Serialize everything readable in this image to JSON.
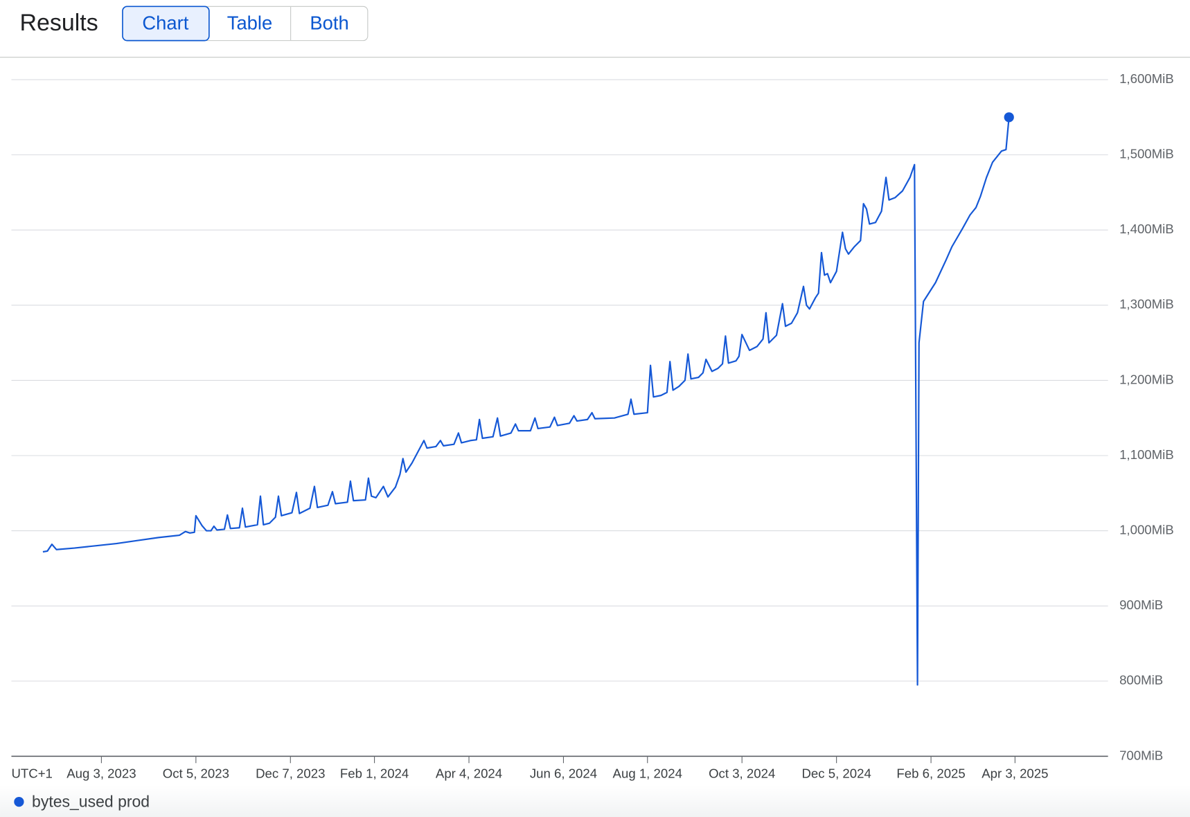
{
  "header": {
    "title": "Results",
    "tabs": [
      "Chart",
      "Table",
      "Both"
    ]
  },
  "chart_data": {
    "type": "line",
    "timezone_label": "UTC+1",
    "x": [
      "2023-06-25",
      "2023-06-28",
      "2023-07-01",
      "2023-07-04",
      "2023-07-16",
      "2023-07-30",
      "2023-08-13",
      "2023-08-27",
      "2023-09-10",
      "2023-09-24",
      "2023-09-28",
      "2023-10-01",
      "2023-10-04",
      "2023-10-05",
      "2023-10-09",
      "2023-10-12",
      "2023-10-15",
      "2023-10-17",
      "2023-10-19",
      "2023-10-24",
      "2023-10-26",
      "2023-10-28",
      "2023-11-03",
      "2023-11-05",
      "2023-11-07",
      "2023-11-15",
      "2023-11-17",
      "2023-11-19",
      "2023-11-23",
      "2023-11-27",
      "2023-11-29",
      "2023-12-01",
      "2023-12-08",
      "2023-12-11",
      "2023-12-13",
      "2023-12-20",
      "2023-12-23",
      "2023-12-25",
      "2024-01-01",
      "2024-01-04",
      "2024-01-06",
      "2024-01-14",
      "2024-01-16",
      "2024-01-18",
      "2024-01-26",
      "2024-01-28",
      "2024-01-30",
      "2024-02-02",
      "2024-02-07",
      "2024-02-10",
      "2024-02-15",
      "2024-02-18",
      "2024-02-20",
      "2024-02-22",
      "2024-02-26",
      "2024-03-05",
      "2024-03-07",
      "2024-03-13",
      "2024-03-16",
      "2024-03-18",
      "2024-03-25",
      "2024-03-28",
      "2024-03-30",
      "2024-04-05",
      "2024-04-09",
      "2024-04-11",
      "2024-04-13",
      "2024-04-20",
      "2024-04-23",
      "2024-04-25",
      "2024-05-02",
      "2024-05-05",
      "2024-05-07",
      "2024-05-15",
      "2024-05-18",
      "2024-05-20",
      "2024-05-28",
      "2024-05-31",
      "2024-06-02",
      "2024-06-10",
      "2024-06-13",
      "2024-06-15",
      "2024-06-22",
      "2024-06-25",
      "2024-06-27",
      "2024-07-10",
      "2024-07-19",
      "2024-07-21",
      "2024-07-23",
      "2024-08-01",
      "2024-08-03",
      "2024-08-05",
      "2024-08-10",
      "2024-08-14",
      "2024-08-16",
      "2024-08-18",
      "2024-08-22",
      "2024-08-26",
      "2024-08-28",
      "2024-08-30",
      "2024-09-04",
      "2024-09-07",
      "2024-09-09",
      "2024-09-13",
      "2024-09-17",
      "2024-09-20",
      "2024-09-22",
      "2024-09-24",
      "2024-09-29",
      "2024-10-01",
      "2024-10-03",
      "2024-10-08",
      "2024-10-13",
      "2024-10-17",
      "2024-10-19",
      "2024-10-21",
      "2024-10-26",
      "2024-10-30",
      "2024-11-01",
      "2024-11-05",
      "2024-11-09",
      "2024-11-13",
      "2024-11-15",
      "2024-11-17",
      "2024-11-21",
      "2024-11-23",
      "2024-11-25",
      "2024-11-27",
      "2024-11-29",
      "2024-12-01",
      "2024-12-05",
      "2024-12-09",
      "2024-12-11",
      "2024-12-13",
      "2024-12-17",
      "2024-12-21",
      "2024-12-23",
      "2024-12-25",
      "2024-12-27",
      "2024-12-31",
      "2025-01-04",
      "2025-01-07",
      "2025-01-09",
      "2025-01-13",
      "2025-01-18",
      "2025-01-23",
      "2025-01-26",
      "2025-01-28",
      "2025-01-29",
      "2025-02-01",
      "2025-02-09",
      "2025-02-16",
      "2025-02-20",
      "2025-02-27",
      "2025-03-04",
      "2025-03-08",
      "2025-03-11",
      "2025-03-15",
      "2025-03-19",
      "2025-03-25",
      "2025-03-28",
      "2025-03-30"
    ],
    "series": [
      {
        "name": "bytes_used prod",
        "color": "#1558d6",
        "values": [
          972,
          973,
          982,
          975,
          977,
          980,
          983,
          987,
          991,
          994,
          999,
          997,
          998,
          1020,
          1007,
          1000,
          1000,
          1006,
          1001,
          1002,
          1021,
          1003,
          1004,
          1030,
          1005,
          1008,
          1046,
          1008,
          1010,
          1018,
          1046,
          1020,
          1024,
          1051,
          1023,
          1030,
          1059,
          1031,
          1034,
          1052,
          1036,
          1038,
          1066,
          1040,
          1041,
          1070,
          1046,
          1044,
          1059,
          1045,
          1058,
          1075,
          1096,
          1078,
          1090,
          1120,
          1110,
          1112,
          1120,
          1113,
          1115,
          1130,
          1117,
          1120,
          1121,
          1148,
          1123,
          1125,
          1150,
          1126,
          1130,
          1142,
          1133,
          1133,
          1150,
          1136,
          1138,
          1151,
          1140,
          1143,
          1153,
          1146,
          1148,
          1157,
          1149,
          1150,
          1155,
          1175,
          1155,
          1157,
          1220,
          1178,
          1180,
          1184,
          1225,
          1187,
          1192,
          1200,
          1235,
          1202,
          1204,
          1210,
          1228,
          1212,
          1216,
          1222,
          1259,
          1223,
          1226,
          1232,
          1261,
          1240,
          1245,
          1255,
          1290,
          1250,
          1260,
          1302,
          1272,
          1276,
          1290,
          1325,
          1300,
          1295,
          1310,
          1316,
          1370,
          1340,
          1342,
          1330,
          1345,
          1397,
          1375,
          1368,
          1378,
          1386,
          1435,
          1428,
          1408,
          1410,
          1425,
          1470,
          1440,
          1443,
          1452,
          1470,
          1487,
          795,
          1250,
          1305,
          1330,
          1360,
          1378,
          1402,
          1420,
          1430,
          1445,
          1470,
          1490,
          1505,
          1507,
          1550
        ]
      }
    ],
    "xlim": [
      "2023-06-04",
      "2025-06-04"
    ],
    "xticks": [
      {
        "value": "2023-08-03",
        "label": "Aug 3, 2023"
      },
      {
        "value": "2023-10-05",
        "label": "Oct 5, 2023"
      },
      {
        "value": "2023-12-07",
        "label": "Dec 7, 2023"
      },
      {
        "value": "2024-02-01",
        "label": "Feb 1, 2024"
      },
      {
        "value": "2024-04-04",
        "label": "Apr 4, 2024"
      },
      {
        "value": "2024-06-06",
        "label": "Jun 6, 2024"
      },
      {
        "value": "2024-08-01",
        "label": "Aug 1, 2024"
      },
      {
        "value": "2024-10-03",
        "label": "Oct 3, 2024"
      },
      {
        "value": "2024-12-05",
        "label": "Dec 5, 2024"
      },
      {
        "value": "2025-02-06",
        "label": "Feb 6, 2025"
      },
      {
        "value": "2025-04-03",
        "label": "Apr 3, 2025"
      }
    ],
    "ylim": [
      700,
      1600
    ],
    "yticks": [
      {
        "value": 700,
        "label": "700MiB"
      },
      {
        "value": 800,
        "label": "800MiB"
      },
      {
        "value": 900,
        "label": "900MiB"
      },
      {
        "value": 1000,
        "label": "1,000MiB"
      },
      {
        "value": 1100,
        "label": "1,100MiB"
      },
      {
        "value": 1200,
        "label": "1,200MiB"
      },
      {
        "value": 1300,
        "label": "1,300MiB"
      },
      {
        "value": 1400,
        "label": "1,400MiB"
      },
      {
        "value": 1500,
        "label": "1,500MiB"
      },
      {
        "value": 1600,
        "label": "1,600MiB"
      }
    ],
    "grid": true,
    "legend": "bottom-left"
  }
}
